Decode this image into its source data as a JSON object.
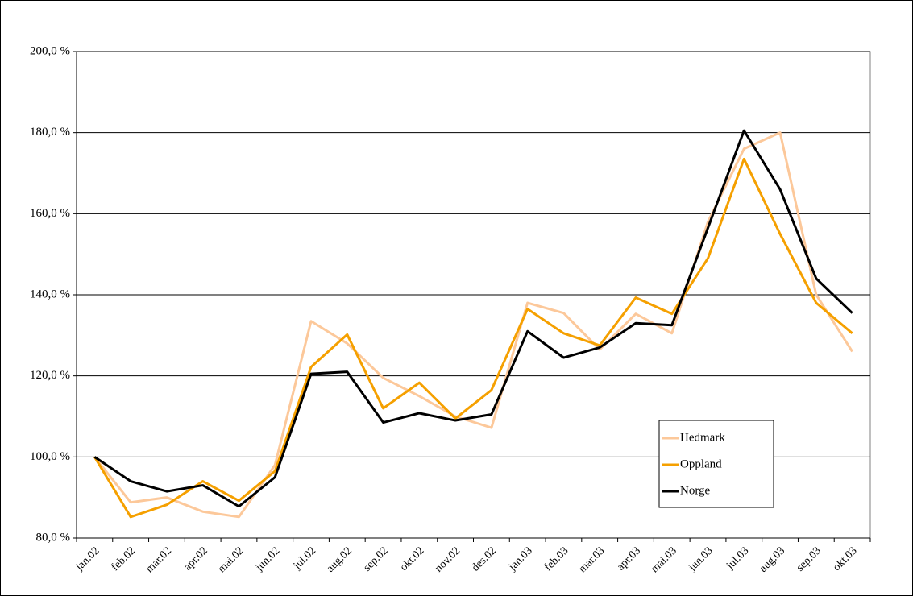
{
  "chart_data": {
    "type": "line",
    "categories": [
      "jan.02",
      "feb.02",
      "mar.02",
      "apr.02",
      "mai.02",
      "jun.02",
      "jul.02",
      "aug.02",
      "sep.02",
      "okt.02",
      "nov.02",
      "des.02",
      "jan.03",
      "feb.03",
      "mar.03",
      "apr.03",
      "mai.03",
      "jun.03",
      "jul.03",
      "aug.03",
      "sep.03",
      "okt.03"
    ],
    "series": [
      {
        "name": "Hedmark",
        "color": "#fcc89a",
        "values": [
          100,
          88.8,
          90,
          86.5,
          85.2,
          98,
          133.5,
          128,
          119.5,
          115,
          110,
          107.2,
          138,
          135.5,
          126.5,
          135.3,
          130.5,
          158,
          176,
          180,
          140,
          126
        ]
      },
      {
        "name": "Oppland",
        "color": "#f5a000",
        "values": [
          100,
          85.2,
          88.2,
          94,
          89.2,
          96.5,
          122.2,
          130.2,
          112,
          118.3,
          109.5,
          116.5,
          136.5,
          130.5,
          127.5,
          139.3,
          135.3,
          149,
          173.5,
          155,
          138,
          130.5
        ]
      },
      {
        "name": "Norge",
        "color": "#000000",
        "values": [
          100,
          94,
          91.5,
          93,
          87.8,
          95,
          120.5,
          121,
          108.5,
          110.8,
          109,
          110.5,
          131,
          124.5,
          127,
          133,
          132.5,
          156.5,
          180.5,
          166,
          144,
          135.5
        ]
      }
    ],
    "ylim": [
      80,
      200
    ],
    "yticks": [
      {
        "value": 80,
        "label": "80,0 %"
      },
      {
        "value": 100,
        "label": "100,0 %"
      },
      {
        "value": 120,
        "label": "120,0 %"
      },
      {
        "value": 140,
        "label": "140,0 %"
      },
      {
        "value": 160,
        "label": "160,0 %"
      },
      {
        "value": 180,
        "label": "180,0 %"
      },
      {
        "value": 200,
        "label": "200,0 %"
      }
    ],
    "grid": true,
    "legend": "lower right"
  }
}
